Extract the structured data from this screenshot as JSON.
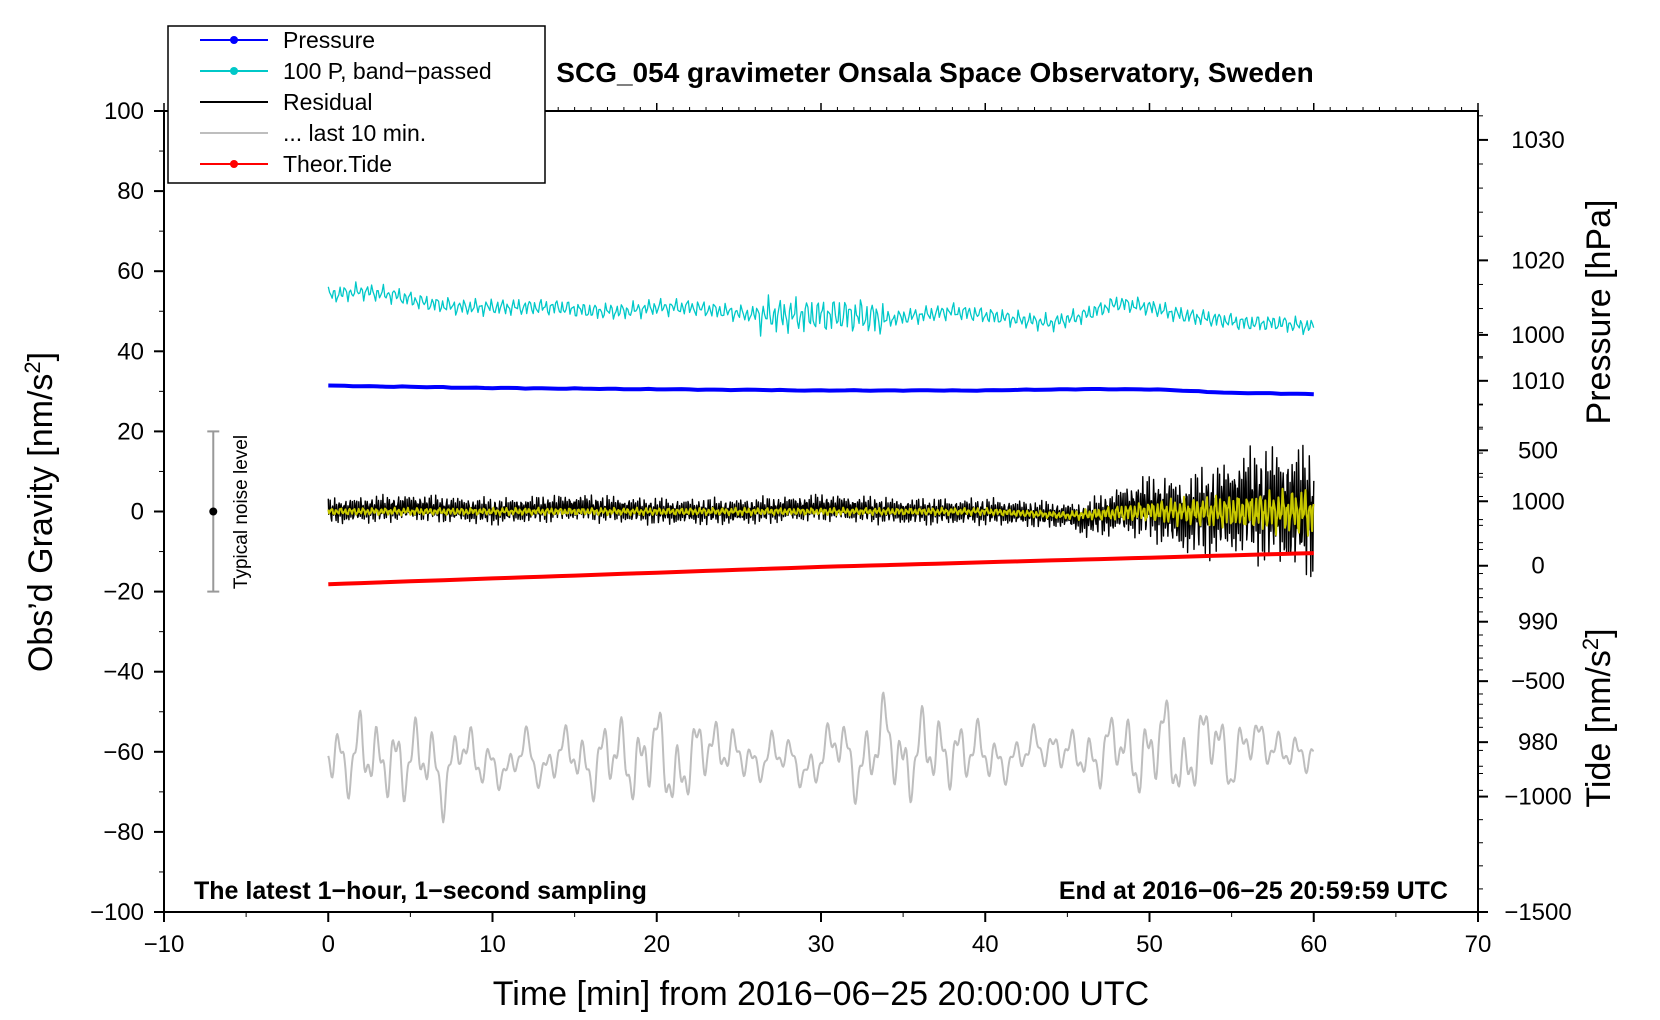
{
  "chart_data": {
    "type": "line",
    "title": "SCG_054 gravimeter Onsala Space Observatory, Sweden",
    "xlabel": "Time [min] from 2016−06−25 20:00:00 UTC",
    "ylabel_left_main": "Obs’d Gravity [nm/s",
    "ylabel_left_sup": "2",
    "ylabel_left_close": "]",
    "ylabel_right_pressure": "Pressure [hPa]",
    "ylabel_right_tide_main": "Tide [nm/s",
    "ylabel_right_tide_sup": "2",
    "ylabel_right_tide_close": "]",
    "note_left": "The latest 1−hour, 1−second sampling",
    "note_right": "End at 2016−06−25 20:59:59 UTC",
    "noise_label": "Typical noise level",
    "noise_bar": {
      "x": -7,
      "center": 0,
      "low": -20,
      "high": 20
    },
    "xlim": [
      -10,
      70
    ],
    "ylim": [
      -100,
      100
    ],
    "pressure_lim": [
      965.9,
      1032.4
    ],
    "tide_lim": [
      -1500,
      1970
    ],
    "x_ticks": [
      -10,
      0,
      10,
      20,
      30,
      40,
      50,
      60,
      70
    ],
    "x_tick_labels": [
      "−10",
      "0",
      "10",
      "20",
      "30",
      "40",
      "50",
      "60",
      "70"
    ],
    "y_ticks": [
      -100,
      -80,
      -60,
      -40,
      -20,
      0,
      20,
      40,
      60,
      80,
      100
    ],
    "y_tick_labels": [
      "−100",
      "−80",
      "−60",
      "−40",
      "−20",
      "0",
      "20",
      "40",
      "60",
      "80",
      "100"
    ],
    "pressure_ticks": [
      980,
      990,
      1000,
      1010,
      1020,
      1030
    ],
    "pressure_tick_labels": [
      "980",
      "990",
      "1000",
      "1010",
      "1020",
      "1030"
    ],
    "tide_ticks": [
      -1500,
      -1000,
      -500,
      0,
      500,
      1000
    ],
    "tide_tick_labels": [
      "−1500",
      "−1000",
      "−500",
      "0",
      "500",
      "1000"
    ],
    "legend": {
      "placement": "top-left",
      "entries": [
        {
          "label": "Pressure",
          "color": "#0000ff",
          "marker": true
        },
        {
          "label": "100 P, band−passed",
          "color": "#00c8c8",
          "marker": true
        },
        {
          "label": "Residual",
          "color": "#000000",
          "marker": false
        },
        {
          "label": "... last 10 min.",
          "color": "#bebebe",
          "marker": false
        },
        {
          "label": "Theor.Tide",
          "color": "#ff0000",
          "marker": true
        }
      ]
    },
    "series": [
      {
        "name": "Pressure",
        "axis": "pressure",
        "color": "#0000ff",
        "x": [
          0,
          5,
          10,
          20,
          30,
          40,
          45,
          50,
          55,
          60
        ],
        "values": [
          1009.6,
          1009.5,
          1009.4,
          1009.3,
          1009.2,
          1009.2,
          1009.3,
          1009.3,
          1009.0,
          1008.9
        ]
      },
      {
        "name": "100 P, band−passed",
        "axis": "gravity",
        "color": "#00c8c8",
        "x": [
          0,
          2,
          4,
          6,
          8,
          10,
          12,
          14,
          16,
          18,
          20,
          22,
          24,
          26,
          28,
          30,
          32,
          34,
          36,
          38,
          40,
          42,
          44,
          46,
          48,
          50,
          52,
          54,
          56,
          58,
          60
        ],
        "values": [
          54,
          55,
          54,
          52,
          51,
          51,
          51,
          51,
          50,
          50,
          51,
          51,
          50,
          49,
          49,
          49,
          49,
          48,
          49,
          50,
          49,
          48,
          47,
          49,
          52,
          51,
          49,
          48,
          47,
          47,
          46
        ]
      },
      {
        "name": "Residual",
        "axis": "gravity",
        "color": "#000000",
        "x": [
          0,
          5,
          10,
          15,
          20,
          25,
          30,
          35,
          40,
          45,
          46,
          48,
          50,
          52,
          54,
          56,
          58,
          60
        ],
        "values": [
          0,
          1,
          0,
          1,
          0,
          0,
          1,
          0,
          0,
          -1,
          -2,
          0,
          1,
          -1,
          0,
          2,
          1,
          0
        ]
      },
      {
        "name": "Residual (smoothed)",
        "axis": "gravity",
        "color": "#c8c800",
        "x": [
          0,
          10,
          20,
          30,
          40,
          45,
          50,
          55,
          60
        ],
        "values": [
          0,
          0,
          0,
          0,
          0,
          -1,
          0,
          0,
          0
        ]
      },
      {
        "name": "... last 10 min.",
        "axis": "gravity",
        "color": "#bebebe",
        "x": [
          0,
          1,
          2,
          3,
          4,
          5,
          6,
          7,
          8,
          9,
          10,
          11,
          12,
          13,
          14,
          15,
          16,
          17,
          18,
          19,
          20,
          21,
          22,
          23,
          24,
          25,
          26,
          27,
          28,
          29,
          30,
          31,
          32,
          33,
          34,
          35,
          36,
          37,
          38,
          39,
          40,
          41,
          42,
          43,
          44,
          45,
          46,
          47,
          48,
          49,
          50,
          51,
          52,
          53,
          54,
          55,
          56,
          57,
          58,
          59,
          60
        ],
        "values": [
          -61,
          -65,
          -55,
          -66,
          -62,
          -60,
          -63,
          -68,
          -57,
          -64,
          -62,
          -66,
          -58,
          -65,
          -61,
          -60,
          -64,
          -62,
          -60,
          -63,
          -59,
          -66,
          -62,
          -60,
          -57,
          -61,
          -65,
          -58,
          -62,
          -66,
          -60,
          -58,
          -64,
          -60,
          -56,
          -63,
          -59,
          -62,
          -58,
          -61,
          -60,
          -62,
          -63,
          -57,
          -59,
          -61,
          -60,
          -62,
          -58,
          -60,
          -62,
          -56,
          -64,
          -60,
          -55,
          -63,
          -58,
          -57,
          -59,
          -62,
          -60
        ]
      },
      {
        "name": "Theor.Tide",
        "axis": "tide",
        "color": "#ff0000",
        "x": [
          0,
          10,
          20,
          30,
          40,
          50,
          60
        ],
        "values": [
          -80,
          -55,
          -30,
          -5,
          15,
          35,
          55
        ]
      }
    ]
  }
}
